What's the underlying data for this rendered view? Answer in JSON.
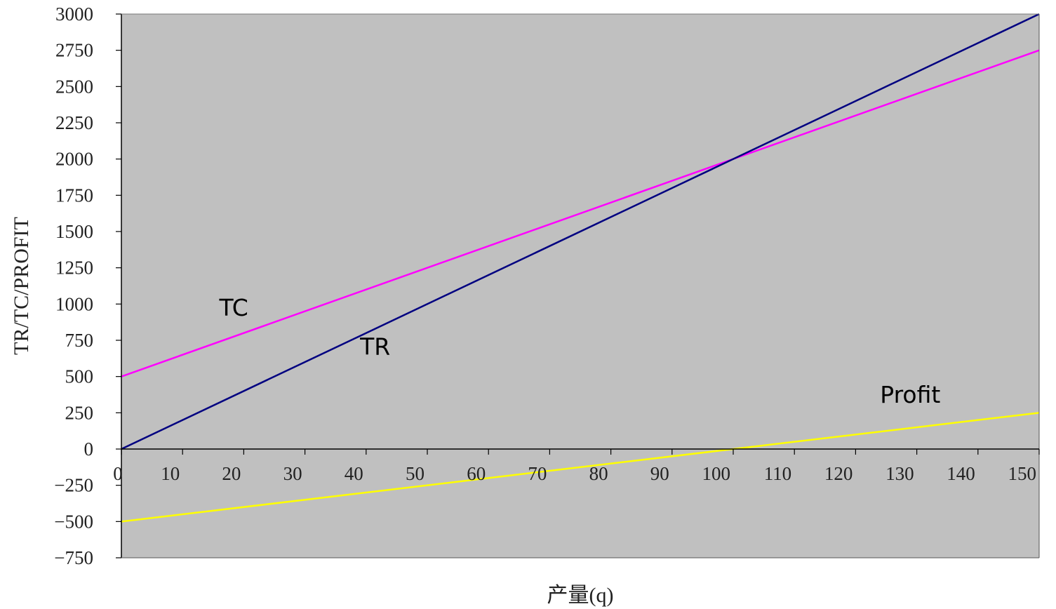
{
  "chart_data": {
    "type": "line",
    "title": "",
    "xlabel": "产量(q)",
    "ylabel": "TR/TC/PROFIT",
    "xlim": [
      0,
      150
    ],
    "ylim": [
      -750,
      3000
    ],
    "x_ticks": [
      "0",
      "10",
      "20",
      "30",
      "40",
      "50",
      "60",
      "70",
      "80",
      "90",
      "100",
      "110",
      "120",
      "130",
      "140",
      "150"
    ],
    "y_ticks": [
      "3000",
      "2750",
      "2500",
      "2250",
      "2000",
      "1750",
      "1500",
      "1250",
      "1000",
      "750",
      "500",
      "250",
      "0",
      "−250",
      "−500",
      "−750"
    ],
    "plot_background": "#c0c0c0",
    "grid": false,
    "series": [
      {
        "name": "TC",
        "color": "#ff00ff",
        "x": [
          0,
          150
        ],
        "y": [
          500,
          2750
        ]
      },
      {
        "name": "TR",
        "color": "#000080",
        "x": [
          0,
          150
        ],
        "y": [
          0,
          3000
        ]
      },
      {
        "name": "Profit",
        "color": "#ffff00",
        "x": [
          0,
          150
        ],
        "y": [
          -500,
          250
        ]
      }
    ],
    "annotations": [
      {
        "text": "TC",
        "x": 16,
        "y": 920
      },
      {
        "text": "TR",
        "x": 39,
        "y": 650
      },
      {
        "text": "Profit",
        "x": 124,
        "y": 320
      }
    ]
  }
}
